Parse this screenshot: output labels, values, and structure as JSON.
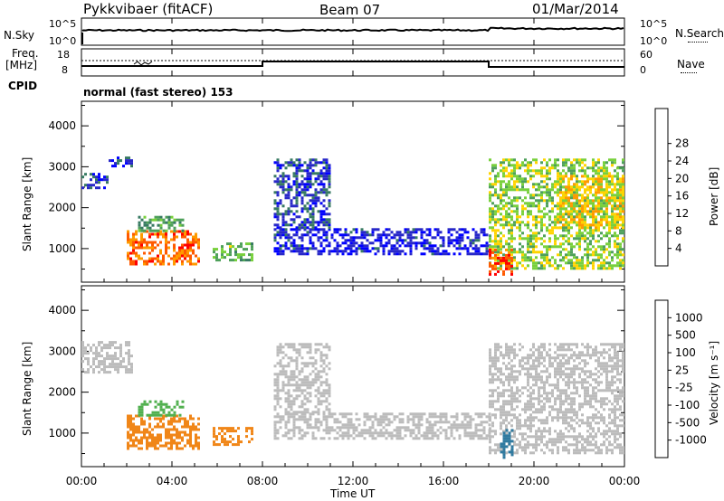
{
  "header": {
    "title": "Pykkvibaer (fitACF)",
    "beam": "Beam 07",
    "date": "01/Mar/2014"
  },
  "nsky_panel": {
    "left_label": "N.Sky",
    "ticks_left": [
      "10^5",
      "10^0"
    ],
    "right_label": "N.Search",
    "ticks_right": [
      "10^5",
      "10^0"
    ]
  },
  "freq_panel": {
    "left_label_1": "Freq.",
    "left_label_2": "[MHz]",
    "ticks_left": [
      "18",
      "8"
    ],
    "right_label": "Nave",
    "ticks_right": [
      "60",
      "0"
    ]
  },
  "cpid_panel": {
    "label": "CPID",
    "text": "normal (fast stereo) 153"
  },
  "axes": {
    "y_label": "Slant Range [km]",
    "y_ticks": [
      "1000",
      "2000",
      "3000",
      "4000"
    ],
    "x_label": "Time UT",
    "x_ticks": [
      "00:00",
      "04:00",
      "08:00",
      "12:00",
      "16:00",
      "20:00",
      "00:00"
    ]
  },
  "colorbars": {
    "power": {
      "label": "Power [dB]",
      "ticks": [
        "4",
        "8",
        "12",
        "16",
        "20",
        "24",
        "28"
      ],
      "colors": [
        "#0000ff",
        "#2828c8",
        "#377a62",
        "#4ea05a",
        "#78d03c",
        "#ffd400",
        "#ff9a00",
        "#ff5a00",
        "#ff0000"
      ]
    },
    "velocity": {
      "label": "Velocity [m s⁻¹]",
      "ticks": [
        "1000",
        "500",
        "100",
        "25",
        "-25",
        "-100",
        "-500",
        "-1000"
      ],
      "colors": [
        "#2c58ad",
        "#2f7aa0",
        "#2f7e46",
        "#51b04f",
        "#bcbcbc",
        "#f5a34c",
        "#f08618",
        "#f05a0a",
        "#ff0000"
      ]
    }
  },
  "chart_data": [
    {
      "type": "heatmap",
      "title": "Power",
      "xlabel": "Time UT",
      "ylabel": "Slant Range [km]",
      "x_range_hours": [
        0,
        24
      ],
      "y_range_km": [
        180,
        4600
      ],
      "value_range_db": [
        0,
        32
      ],
      "regions": [
        {
          "t": [
            0.0,
            1.2
          ],
          "r": [
            2500,
            2850
          ],
          "level_db": 6
        },
        {
          "t": [
            1.2,
            2.2
          ],
          "r": [
            3000,
            3250
          ],
          "level_db": 6
        },
        {
          "t": [
            2.0,
            5.2
          ],
          "r": [
            650,
            1450
          ],
          "level_db": 26
        },
        {
          "t": [
            2.5,
            4.5
          ],
          "r": [
            1450,
            1800
          ],
          "level_db": 12
        },
        {
          "t": [
            5.8,
            7.5
          ],
          "r": [
            750,
            1150
          ],
          "level_db": 14
        },
        {
          "t": [
            8.5,
            18.0
          ],
          "r": [
            900,
            1500
          ],
          "level_db": 4
        },
        {
          "t": [
            8.5,
            11.0
          ],
          "r": [
            1500,
            3200
          ],
          "level_db": 6
        },
        {
          "t": [
            18.0,
            24.0
          ],
          "r": [
            500,
            3200
          ],
          "level_db": 16
        },
        {
          "t": [
            18.0,
            19.0
          ],
          "r": [
            400,
            1000
          ],
          "level_db": 28
        },
        {
          "t": [
            21.0,
            24.0
          ],
          "r": [
            1500,
            2800
          ],
          "level_db": 20
        }
      ]
    },
    {
      "type": "heatmap",
      "title": "Velocity",
      "xlabel": "Time UT",
      "ylabel": "Slant Range [km]",
      "x_range_hours": [
        0,
        24
      ],
      "y_range_km": [
        180,
        4600
      ],
      "value_range_ms": [
        -1000,
        1000
      ],
      "regions": [
        {
          "t": [
            0.0,
            2.2
          ],
          "r": [
            2500,
            3250
          ],
          "level_ms": 0
        },
        {
          "t": [
            2.0,
            5.2
          ],
          "r": [
            650,
            1450
          ],
          "level_ms": -300
        },
        {
          "t": [
            2.5,
            4.5
          ],
          "r": [
            1450,
            1800
          ],
          "level_ms": 50
        },
        {
          "t": [
            5.8,
            7.5
          ],
          "r": [
            750,
            1150
          ],
          "level_ms": -300
        },
        {
          "t": [
            8.5,
            18.0
          ],
          "r": [
            900,
            1500
          ],
          "level_ms": 0
        },
        {
          "t": [
            8.5,
            11.0
          ],
          "r": [
            1500,
            3200
          ],
          "level_ms": 0
        },
        {
          "t": [
            18.0,
            24.0
          ],
          "r": [
            500,
            3200
          ],
          "level_ms": 0
        },
        {
          "t": [
            18.5,
            19.0
          ],
          "r": [
            400,
            1100
          ],
          "level_ms": 600
        }
      ]
    }
  ]
}
